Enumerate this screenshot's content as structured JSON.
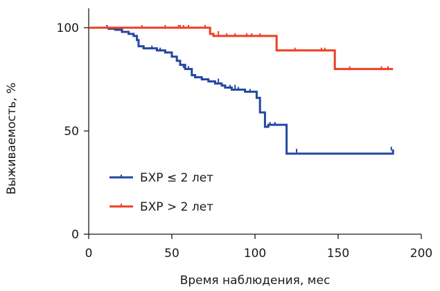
{
  "chart_data": {
    "type": "line",
    "subtype": "kaplan-meier",
    "title": "",
    "xlabel": "Время наблюдения, мес",
    "ylabel": "Выживаемость, %",
    "xlim": [
      0,
      200
    ],
    "ylim": [
      0,
      100
    ],
    "xticks": [
      0,
      50,
      100,
      150,
      200
    ],
    "xtick_labels": [
      "0",
      "50",
      "100",
      "150",
      "200"
    ],
    "yticks": [
      0,
      50,
      100
    ],
    "ytick_labels": [
      "0",
      "50",
      "100"
    ],
    "grid": false,
    "legend_position": "bottom-left",
    "series": [
      {
        "name": "БХР ≤ 2 лет",
        "color": "#2447a0",
        "steps": [
          [
            0,
            100
          ],
          [
            10,
            100
          ],
          [
            12,
            99.5
          ],
          [
            16,
            99
          ],
          [
            20,
            98
          ],
          [
            24,
            97
          ],
          [
            27,
            96
          ],
          [
            29,
            94
          ],
          [
            30,
            91
          ],
          [
            33,
            90
          ],
          [
            41,
            89
          ],
          [
            46,
            88
          ],
          [
            50,
            86
          ],
          [
            53,
            84
          ],
          [
            55,
            82
          ],
          [
            58,
            80
          ],
          [
            62,
            77
          ],
          [
            64,
            76
          ],
          [
            68,
            75
          ],
          [
            72,
            74
          ],
          [
            76,
            73
          ],
          [
            80,
            72
          ],
          [
            82,
            71
          ],
          [
            86,
            70
          ],
          [
            94,
            69
          ],
          [
            101,
            66
          ],
          [
            103,
            59
          ],
          [
            106,
            52
          ],
          [
            108,
            53
          ],
          [
            119,
            39
          ],
          [
            183,
            39
          ],
          [
            183,
            41
          ]
        ],
        "censored": [
          [
            11,
            100
          ],
          [
            38,
            90
          ],
          [
            43,
            89
          ],
          [
            57,
            81
          ],
          [
            60,
            80
          ],
          [
            78,
            74
          ],
          [
            85,
            71
          ],
          [
            88,
            71
          ],
          [
            90,
            70
          ],
          [
            97,
            69
          ],
          [
            109,
            53
          ],
          [
            112,
            53
          ],
          [
            125,
            40
          ],
          [
            182,
            41
          ]
        ]
      },
      {
        "name": "БХР > 2 лет",
        "color": "#ee3f24",
        "steps": [
          [
            0,
            100
          ],
          [
            72,
            100
          ],
          [
            73,
            97
          ],
          [
            75,
            96
          ],
          [
            112,
            96
          ],
          [
            113,
            89
          ],
          [
            147,
            89
          ],
          [
            148,
            80
          ],
          [
            183,
            80
          ]
        ],
        "censored": [
          [
            32,
            100
          ],
          [
            46,
            100
          ],
          [
            54,
            100
          ],
          [
            55,
            100
          ],
          [
            57,
            100
          ],
          [
            60,
            100
          ],
          [
            70,
            100
          ],
          [
            78,
            97
          ],
          [
            83,
            96
          ],
          [
            88,
            96
          ],
          [
            95,
            96
          ],
          [
            98,
            96
          ],
          [
            103,
            96
          ],
          [
            124,
            89
          ],
          [
            140,
            89
          ],
          [
            142,
            89
          ],
          [
            157,
            80
          ],
          [
            176,
            80
          ],
          [
            180,
            80
          ]
        ]
      }
    ]
  }
}
